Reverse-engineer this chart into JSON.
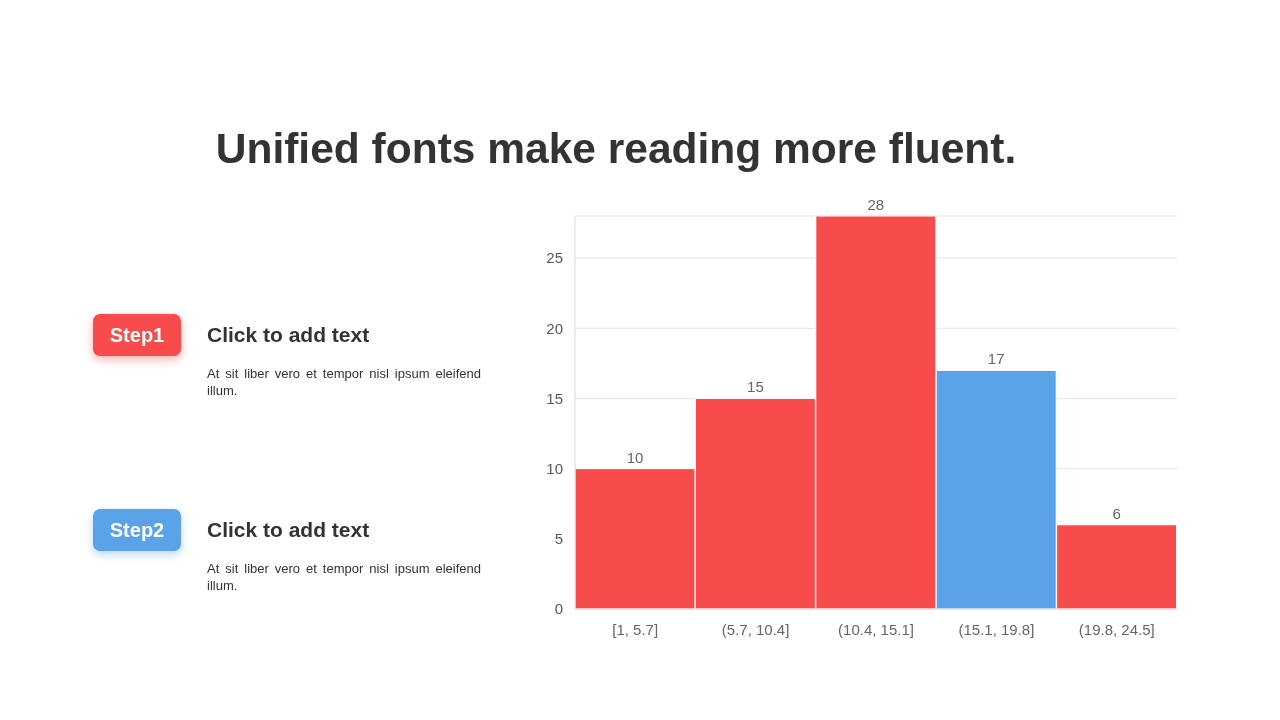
{
  "chart_data": [
    {
      "type": "other",
      "title": "Unified fonts make reading more fluent.",
      "annotations": [
        "Step1",
        "Click to add text",
        "At sit liber vero et tempor nisl ipsum eleifend illum.",
        "Step2",
        "Click to add text",
        "At sit liber vero et tempor nisl ipsum eleifend illum."
      ],
      "colors": [
        "#f84c4c",
        "#5ba3e9"
      ]
    },
    {
      "type": "bar",
      "categories": [
        "[1, 5.7]",
        "(5.7, 10.4]",
        "(10.4, 15.1]",
        "(15.1, 19.8]",
        "(19.8, 24.5]"
      ],
      "values": [
        10,
        15,
        28,
        17,
        6
      ],
      "colors": [
        "#f84c4c",
        "#f84c4c",
        "#f84c4c",
        "#5ba3e9",
        "#f84c4c"
      ],
      "ylim": [
        0,
        28
      ],
      "yticks": [
        0,
        5,
        10,
        15,
        20,
        25
      ],
      "grid": "y",
      "data_labels": true
    }
  ]
}
